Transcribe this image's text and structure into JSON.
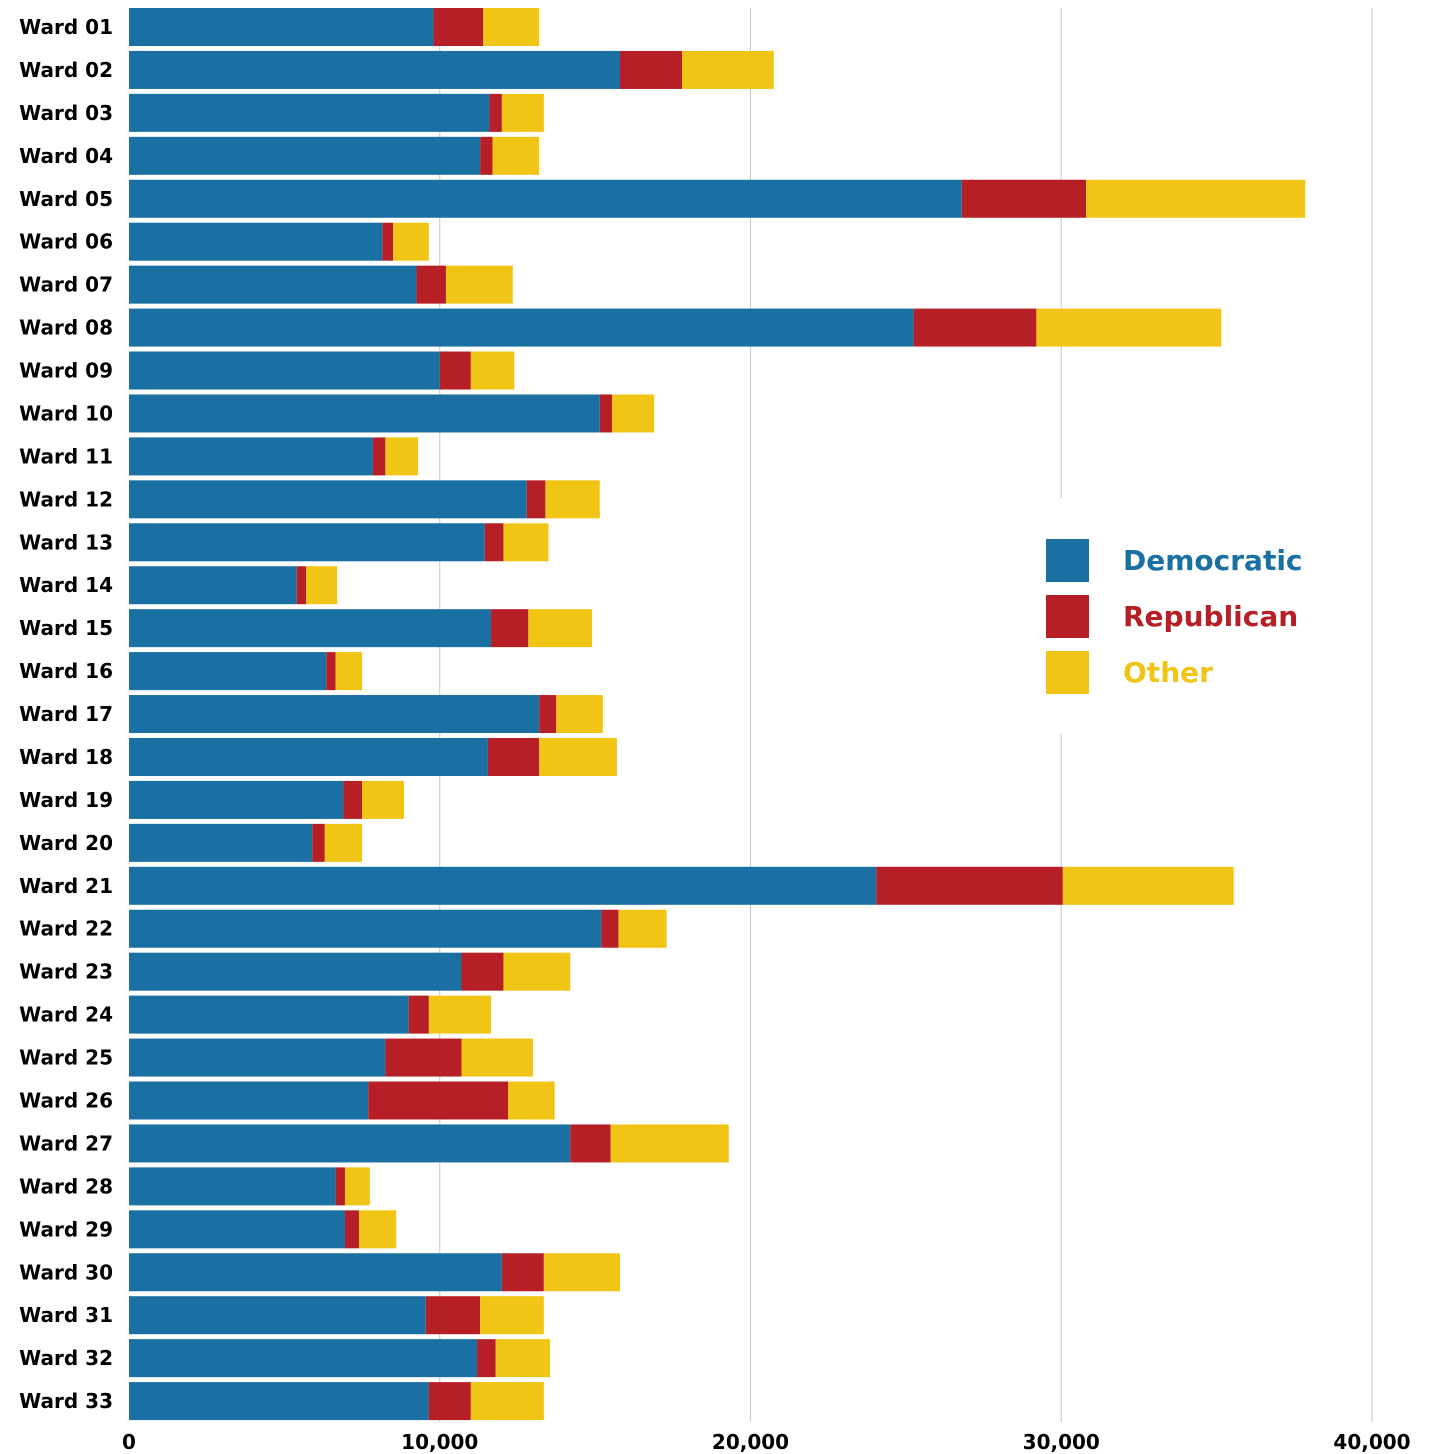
{
  "chart_data": {
    "type": "bar",
    "orientation": "horizontal",
    "stacked": true,
    "categories": [
      "Ward 01",
      "Ward 02",
      "Ward 03",
      "Ward 04",
      "Ward 05",
      "Ward 06",
      "Ward 07",
      "Ward 08",
      "Ward 09",
      "Ward 10",
      "Ward 11",
      "Ward 12",
      "Ward 13",
      "Ward 14",
      "Ward 15",
      "Ward 16",
      "Ward 17",
      "Ward 18",
      "Ward 19",
      "Ward 20",
      "Ward 21",
      "Ward 22",
      "Ward 23",
      "Ward 24",
      "Ward 25",
      "Ward 26",
      "Ward 27",
      "Ward 28",
      "Ward 29",
      "Ward 30",
      "Ward 31",
      "Ward 32",
      "Ward 33"
    ],
    "series": [
      {
        "name": "Democratic",
        "color": "#1a6fa3",
        "values": [
          9800,
          15800,
          11600,
          11300,
          26800,
          8150,
          9250,
          25250,
          10000,
          15150,
          7850,
          12800,
          11450,
          5400,
          11650,
          6350,
          13200,
          11550,
          6900,
          5900,
          24050,
          15200,
          10700,
          9000,
          8250,
          7700,
          14200,
          6650,
          6950,
          12000,
          9550,
          11200,
          9650
        ]
      },
      {
        "name": "Republican",
        "color": "#b71f27",
        "values": [
          1600,
          2000,
          400,
          400,
          4000,
          350,
          950,
          3950,
          1000,
          400,
          400,
          600,
          600,
          300,
          1200,
          300,
          550,
          1650,
          600,
          400,
          6000,
          550,
          1350,
          650,
          2450,
          4500,
          1300,
          300,
          450,
          1350,
          1750,
          600,
          1350
        ]
      },
      {
        "name": "Other",
        "color": "#f1c515",
        "values": [
          1800,
          2950,
          1350,
          1500,
          7050,
          1150,
          2150,
          5950,
          1400,
          1350,
          1050,
          1750,
          1450,
          1000,
          2050,
          850,
          1500,
          2500,
          1350,
          1200,
          5500,
          1550,
          2150,
          2000,
          2300,
          1500,
          3800,
          800,
          1200,
          2450,
          2050,
          1750,
          2350
        ]
      }
    ],
    "xlim": [
      0,
      40000
    ],
    "xticks": [
      0,
      10000,
      20000,
      30000,
      40000
    ],
    "xtick_labels": [
      "0",
      "10,000",
      "20,000",
      "30,000",
      "40,000"
    ],
    "grid": "vertical",
    "legend_position": "right",
    "title": "",
    "xlabel": "",
    "ylabel": ""
  },
  "legend": {
    "items": [
      {
        "label": "Democratic",
        "color": "#1a6fa3"
      },
      {
        "label": "Republican",
        "color": "#b71f27"
      },
      {
        "label": "Other",
        "color": "#f1c515"
      }
    ]
  }
}
